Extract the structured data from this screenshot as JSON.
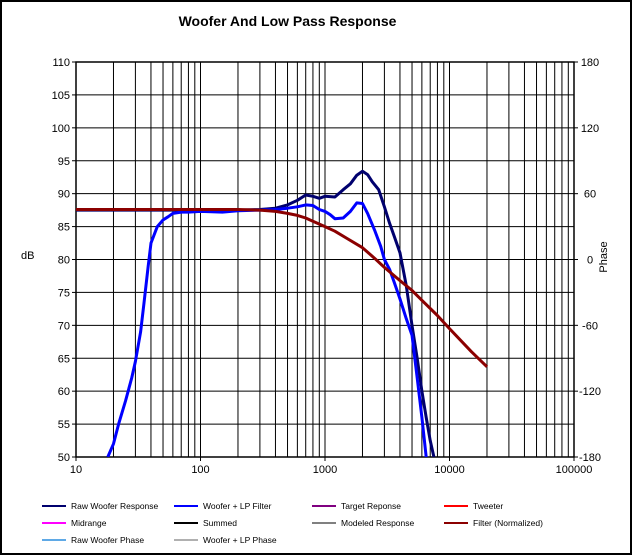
{
  "chart_data": {
    "type": "line",
    "title": "Woofer  And  Low Pass Response",
    "ylabel": "dB",
    "y2label": "Phase",
    "xscale": "log",
    "xlim": [
      10,
      100000
    ],
    "ylim": [
      50,
      110
    ],
    "y2lim": [
      -180,
      180
    ],
    "x_ticks": [
      "10",
      "100",
      "1000",
      "10000",
      "100000"
    ],
    "y_ticks": [
      "110",
      "105",
      "100",
      "95",
      "90",
      "85",
      "80",
      "75",
      "70",
      "65",
      "60",
      "55",
      "50"
    ],
    "y2_ticks": [
      "180",
      "120",
      "60",
      "0",
      "-60",
      "-120",
      "-180"
    ],
    "grid": true,
    "legend_position": "bottom",
    "series": [
      {
        "name": "Raw Woofer Response",
        "color": "#00006e",
        "x": [
          10,
          20,
          40,
          60,
          80,
          100,
          150,
          200,
          300,
          400,
          500,
          600,
          700,
          800,
          900,
          1000,
          1200,
          1400,
          1600,
          1800,
          2000,
          2200,
          2400,
          2700,
          3000,
          3300,
          3600,
          4000,
          4500,
          5000,
          5500,
          6000,
          6500,
          7000,
          7500
        ],
        "y": [
          87.5,
          87.5,
          87.5,
          87.5,
          87.4,
          87.5,
          87.3,
          87.5,
          87.6,
          87.8,
          88.3,
          89.0,
          89.8,
          89.6,
          89.3,
          89.6,
          89.5,
          90.6,
          91.5,
          92.8,
          93.4,
          92.9,
          91.8,
          90.6,
          88.0,
          85.5,
          83.5,
          81.0,
          76.0,
          70.0,
          65.0,
          60.0,
          56.0,
          52.5,
          50
        ]
      },
      {
        "name": "Woofer + LP Filter",
        "color": "#0000ff",
        "x": [
          18,
          20,
          22,
          25,
          28,
          30,
          33,
          35,
          38,
          40,
          45,
          50,
          55,
          60,
          70,
          80,
          100,
          150,
          200,
          300,
          400,
          500,
          600,
          700,
          800,
          900,
          1000,
          1100,
          1200,
          1400,
          1600,
          1800,
          2000,
          2200,
          2500,
          2800,
          3000,
          3300,
          3600,
          4000,
          4500,
          5000,
          5500,
          6000,
          6500
        ],
        "y": [
          50,
          52,
          55,
          58.5,
          62,
          64.5,
          69,
          73,
          79,
          82.5,
          85,
          86,
          86.5,
          87,
          87.2,
          87.2,
          87.3,
          87.2,
          87.4,
          87.5,
          87.6,
          87.8,
          88.0,
          88.3,
          88.2,
          87.6,
          87.3,
          86.8,
          86.2,
          86.3,
          87.3,
          88.6,
          88.5,
          87.0,
          84.5,
          82.0,
          80.0,
          78.5,
          76.5,
          74.0,
          71.0,
          68.5,
          62.0,
          56.0,
          50
        ]
      },
      {
        "name": "Filter (Normalized)",
        "color": "#8b0000",
        "x": [
          10,
          100,
          200,
          300,
          400,
          500,
          600,
          700,
          800,
          1000,
          1200,
          1500,
          2000,
          2500,
          3000,
          4000,
          5000,
          6000,
          8000,
          10000,
          15000,
          20000
        ],
        "y": [
          87.6,
          87.6,
          87.6,
          87.5,
          87.3,
          87.0,
          86.7,
          86.3,
          85.8,
          85.0,
          84.3,
          83.2,
          81.8,
          80.2,
          78.8,
          76.8,
          75.3,
          73.8,
          71.5,
          69.5,
          66.0,
          63.7
        ]
      }
    ],
    "legend": {
      "items": [
        {
          "label": "Raw Woofer Response",
          "color": "#00006e"
        },
        {
          "label": "Woofer + LP Filter",
          "color": "#0000ff"
        },
        {
          "label": "Target Reponse",
          "color": "#800080"
        },
        {
          "label": "Tweeter",
          "color": "#ff0000"
        },
        {
          "label": "Midrange",
          "color": "#ff00ff"
        },
        {
          "label": "Summed",
          "color": "#000000"
        },
        {
          "label": "Modeled Response",
          "color": "#808080"
        },
        {
          "label": "Filter (Normalized)",
          "color": "#8b0000"
        },
        {
          "label": "Raw Woofer Phase",
          "color": "#5fa9e6"
        },
        {
          "label": "Woofer + LP  Phase",
          "color": "#b0b0b0"
        }
      ]
    }
  }
}
